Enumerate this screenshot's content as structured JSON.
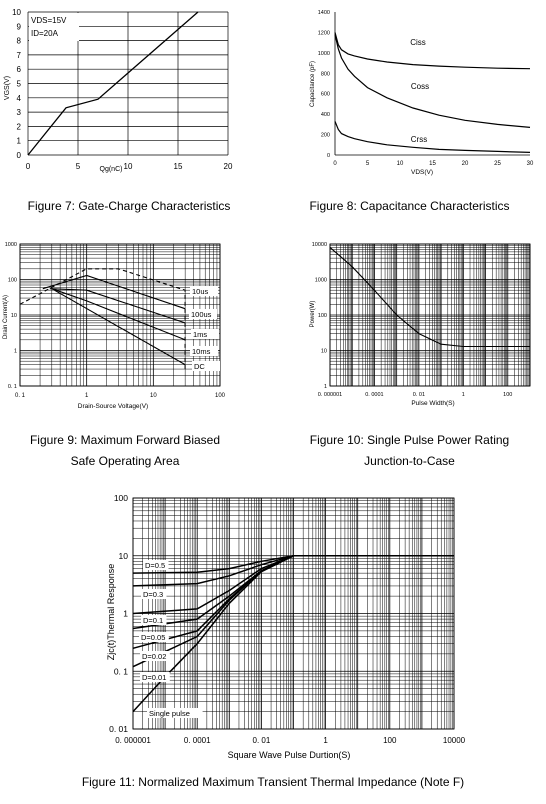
{
  "charts": [
    {
      "type": "line",
      "caption": [
        "Figure 7: Gate-Charge Characteristics"
      ],
      "xlabel": "Qg(nC)",
      "ylabel": "VGS(V)",
      "xlim": [
        0,
        20
      ],
      "ylim": [
        0,
        10
      ],
      "xticks": [
        0,
        5,
        10,
        15,
        20
      ],
      "yticks": [
        0,
        1,
        2,
        3,
        4,
        5,
        6,
        7,
        8,
        9,
        10
      ],
      "grid": true,
      "annotations": [
        "VDS=15V",
        "ID=20A"
      ],
      "series": [
        {
          "name": "",
          "x": [
            0,
            3.8,
            7,
            17
          ],
          "y": [
            0,
            3.3,
            3.9,
            10
          ]
        }
      ]
    },
    {
      "type": "line",
      "caption": [
        "Figure 8: Capacitance Characteristics"
      ],
      "xlabel": "VDS(V)",
      "ylabel": "Capacitance (pF)",
      "xlim": [
        0,
        30
      ],
      "ylim": [
        0,
        1400
      ],
      "xticks": [
        0,
        5,
        10,
        15,
        20,
        25,
        30
      ],
      "yticks": [
        0,
        200,
        400,
        600,
        800,
        1000,
        1200,
        1400
      ],
      "grid": false,
      "series": [
        {
          "name": "Ciss",
          "x": [
            0,
            0.5,
            1,
            2,
            3,
            5,
            8,
            12,
            16,
            20,
            25,
            30
          ],
          "y": [
            1200,
            1080,
            1030,
            990,
            970,
            940,
            910,
            885,
            870,
            860,
            850,
            845
          ]
        },
        {
          "name": "Coss",
          "x": [
            0,
            0.5,
            1,
            2,
            3,
            5,
            8,
            12,
            16,
            20,
            25,
            30
          ],
          "y": [
            1180,
            1040,
            950,
            840,
            770,
            660,
            560,
            460,
            390,
            340,
            300,
            270
          ]
        },
        {
          "name": "Crss",
          "x": [
            0,
            0.5,
            1,
            2,
            3,
            5,
            8,
            12,
            16,
            20,
            25,
            30
          ],
          "y": [
            330,
            250,
            210,
            180,
            160,
            130,
            100,
            75,
            55,
            45,
            35,
            25
          ]
        }
      ]
    },
    {
      "type": "line",
      "caption": [
        "Figure 9: Maximum Forward Biased",
        "Safe Operating Area"
      ],
      "xlabel": "Drain-Source Voltage(V)",
      "ylabel": "Drain Current(A)",
      "xscale": "log",
      "yscale": "log",
      "xlim": [
        0.1,
        100
      ],
      "ylim": [
        0.1,
        1000
      ],
      "xticklabels": [
        "0. 1",
        "1",
        "10",
        "100"
      ],
      "yticklabels": [
        "0. 1",
        "1",
        "10",
        "100",
        "1000"
      ],
      "grid": true,
      "series": [
        {
          "name": "10us",
          "x": [
            0.1,
            1,
            3,
            30,
            30
          ],
          "y": [
            20,
            200,
            200,
            50,
            0.3
          ],
          "dash": true
        },
        {
          "name": "100us",
          "x": [
            0.22,
            1,
            30
          ],
          "y": [
            55,
            130,
            15
          ]
        },
        {
          "name": "1ms",
          "x": [
            0.28,
            1,
            30
          ],
          "y": [
            55,
            50,
            6
          ]
        },
        {
          "name": "10ms",
          "x": [
            0.3,
            1,
            30
          ],
          "y": [
            55,
            25,
            2
          ]
        },
        {
          "name": "DC",
          "x": [
            0.3,
            30
          ],
          "y": [
            55,
            0.4
          ]
        }
      ]
    },
    {
      "type": "line",
      "caption": [
        "Figure 10: Single Pulse Power Rating",
        "Junction-to-Case"
      ],
      "xlabel": "Pulse Width(S)",
      "ylabel": "Power(W)",
      "xscale": "log",
      "yscale": "log",
      "xlim": [
        1e-06,
        1000
      ],
      "ylim": [
        1,
        10000
      ],
      "xticklabels": [
        "0. 000001",
        "0. 0001",
        "0. 01",
        "1",
        "100"
      ],
      "xtickvalues": [
        1e-06,
        0.0001,
        0.01,
        1,
        100
      ],
      "yticklabels": [
        "1",
        "10",
        "100",
        "1000",
        "10000"
      ],
      "grid": true,
      "series": [
        {
          "name": "",
          "x": [
            1e-06,
            1e-05,
            0.0001,
            0.001,
            0.01,
            0.1,
            1,
            10,
            100,
            1000
          ],
          "y": [
            8000,
            2300,
            500,
            100,
            30,
            15,
            13,
            13,
            13,
            13
          ]
        }
      ]
    },
    {
      "type": "line",
      "caption": [
        "Figure 11: Normalized Maximum Transient Thermal Impedance (Note F)"
      ],
      "xlabel": "Square Wave Pulse Durtion(S)",
      "ylabel": "Zjc(t)Thermal Response",
      "xscale": "log",
      "yscale": "log",
      "xlim": [
        1e-06,
        10000
      ],
      "ylim": [
        0.01,
        100
      ],
      "xticklabels": [
        "0. 000001",
        "0. 0001",
        "0. 01",
        "1",
        "100",
        "10000"
      ],
      "xtickvalues": [
        1e-06,
        0.0001,
        0.01,
        1,
        100,
        10000
      ],
      "yticklabels": [
        "0. 01",
        "0. 1",
        "1",
        "10",
        "100"
      ],
      "yscale_values": [
        0.01,
        0.1,
        1,
        10,
        100
      ],
      "grid": true,
      "series": [
        {
          "name": "D=0.5",
          "x": [
            1e-06,
            0.0001,
            0.001,
            0.01,
            0.1,
            1,
            10000
          ],
          "y": [
            5,
            5.2,
            6,
            8,
            10,
            10,
            10
          ]
        },
        {
          "name": "D=0.3",
          "x": [
            1e-06,
            0.0001,
            0.001,
            0.01,
            0.1,
            1,
            10000
          ],
          "y": [
            3,
            3.3,
            4.5,
            7,
            10,
            10,
            10
          ]
        },
        {
          "name": "D=0.1",
          "x": [
            1e-06,
            0.0001,
            0.001,
            0.01,
            0.1,
            1,
            10000
          ],
          "y": [
            1,
            1.2,
            2.5,
            6,
            10,
            10,
            10
          ]
        },
        {
          "name": "D=0.05",
          "x": [
            1e-06,
            0.0001,
            0.001,
            0.01,
            0.1,
            1,
            10000
          ],
          "y": [
            0.55,
            0.8,
            2,
            5.5,
            10,
            10,
            10
          ]
        },
        {
          "name": "D=0.02",
          "x": [
            1e-06,
            0.0001,
            0.001,
            0.01,
            0.1,
            1,
            10000
          ],
          "y": [
            0.25,
            0.5,
            1.8,
            5.5,
            10,
            10,
            10
          ]
        },
        {
          "name": "D=0.01",
          "x": [
            1e-06,
            0.0001,
            0.001,
            0.01,
            0.1,
            1,
            10000
          ],
          "y": [
            0.12,
            0.4,
            1.7,
            5.5,
            10,
            10,
            10
          ]
        },
        {
          "name": "Single pulse",
          "x": [
            1e-06,
            1e-05,
            0.0001,
            0.001,
            0.01,
            0.1,
            1,
            10000
          ],
          "y": [
            0.02,
            0.08,
            0.3,
            1.5,
            5.3,
            10,
            10,
            10
          ]
        }
      ]
    }
  ]
}
